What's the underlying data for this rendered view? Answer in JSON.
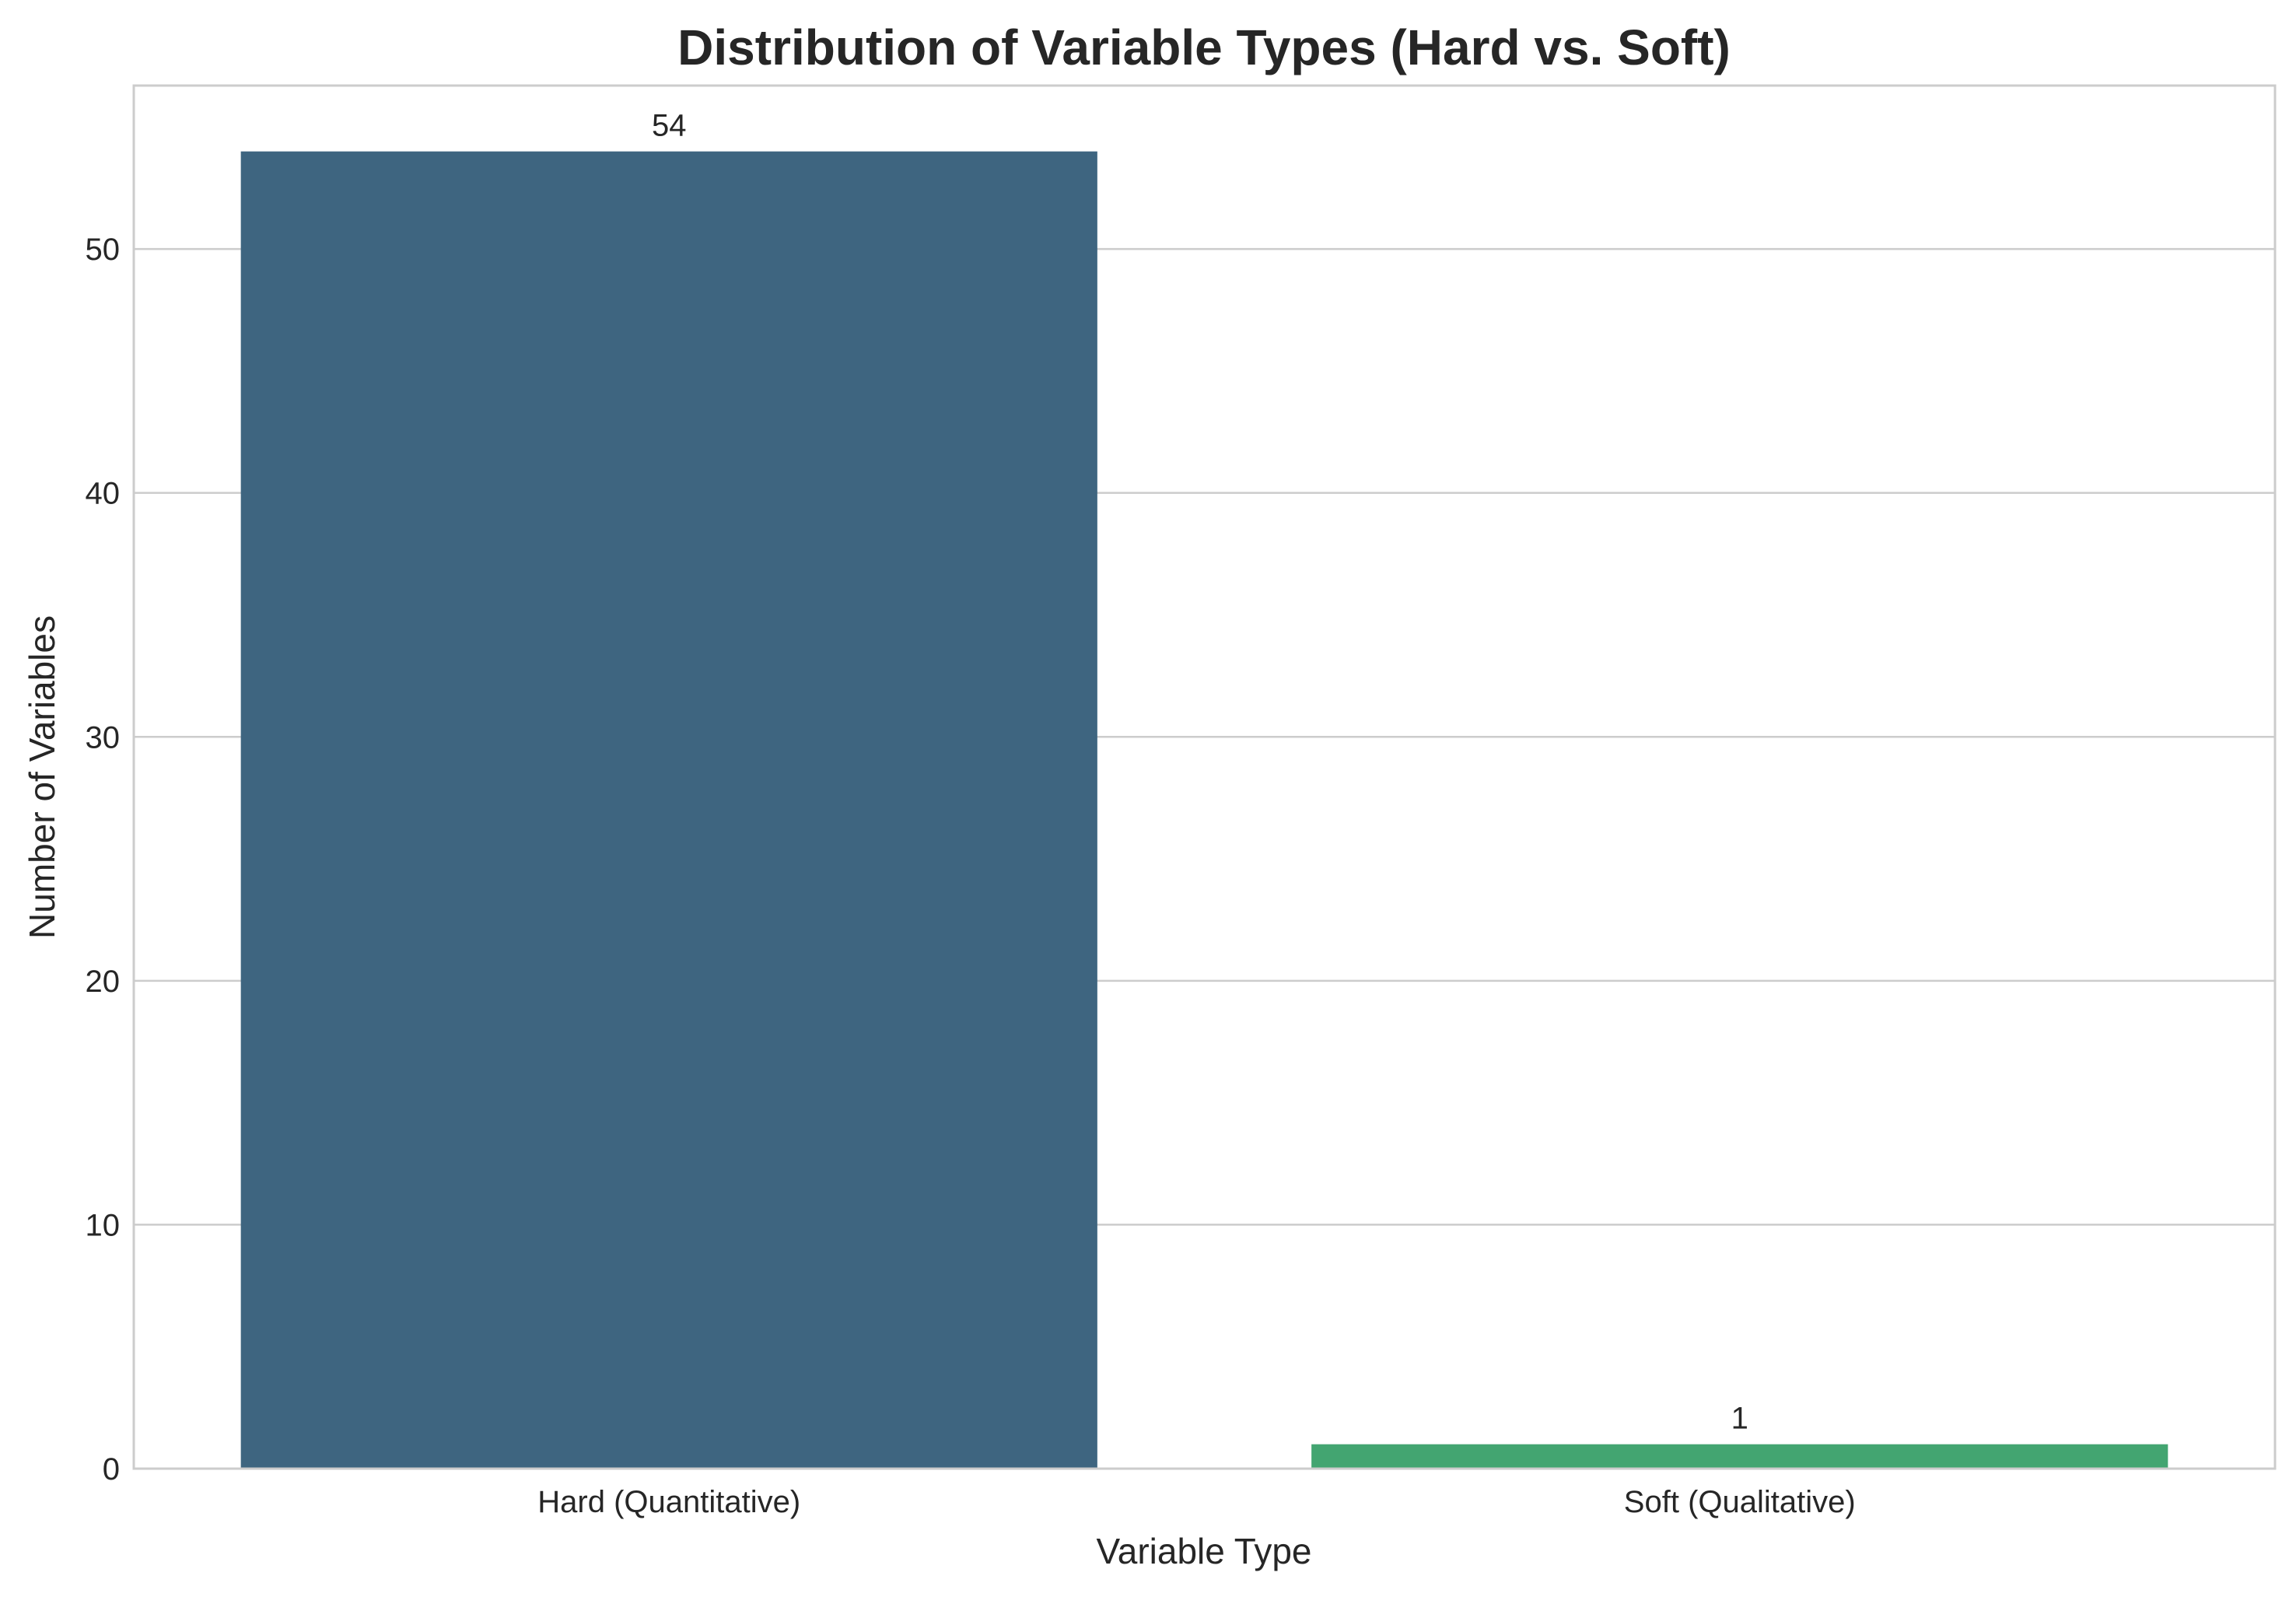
{
  "chart_data": {
    "type": "bar",
    "title": "Distribution of Variable Types (Hard vs. Soft)",
    "xlabel": "Variable Type",
    "ylabel": "Number of Variables",
    "categories": [
      "Hard (Quantitative)",
      "Soft (Qualitative)"
    ],
    "values": [
      54,
      1
    ],
    "data_labels": [
      "54",
      "1"
    ],
    "colors": [
      "#3e6580",
      "#43a571"
    ],
    "ylim": [
      0,
      56.7
    ],
    "yticks": [
      0,
      10,
      20,
      30,
      40,
      50
    ],
    "grid": "horizontal",
    "legend": "none"
  }
}
